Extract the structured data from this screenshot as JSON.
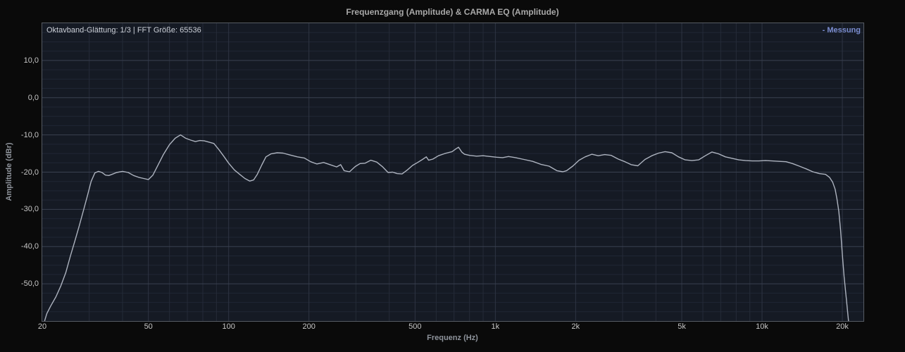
{
  "header": {
    "title": "Frequenzgang (Amplitude) & CARMA EQ (Amplitude)"
  },
  "plot": {
    "info_label": "Oktavband-Glättung: 1/3 | FFT Größe: 65536",
    "legend": [
      {
        "label": "- Messung",
        "color": "#7b8dd0"
      }
    ]
  },
  "axes": {
    "xlabel": "Frequenz (Hz)",
    "ylabel": "Amplitude (dBr)"
  },
  "colors": {
    "page_bg": "#0a0a0a",
    "plot_bg": "#151a24",
    "border": "#565b63",
    "grid_minor_h": "#202634",
    "grid_major_h": "#3a4150",
    "grid_vertical": "#252b38",
    "grid_vertical_labeled": "#2e3443",
    "curve": "#adb3bf",
    "title_text": "#a8a8a8",
    "info_text": "#ccd0d8",
    "tick_text": "#c6c6c6",
    "axis_label_text": "#8f949c",
    "legend_text": "#7b8dd0"
  },
  "chart_data": {
    "type": "line",
    "title": "Frequenzgang (Amplitude) & CARMA EQ (Amplitude)",
    "xlabel": "Frequenz (Hz)",
    "ylabel": "Amplitude (dBr)",
    "x_scale": "log",
    "x_range": [
      20,
      24000
    ],
    "y_range": [
      -60,
      20
    ],
    "y_major_step": 10,
    "y_minor_step": 2.5,
    "grid": true,
    "legend_position": "top-right",
    "x_ticks": [
      {
        "f": 20,
        "label": "20"
      },
      {
        "f": 50,
        "label": "50"
      },
      {
        "f": 100,
        "label": "100"
      },
      {
        "f": 200,
        "label": "200"
      },
      {
        "f": 500,
        "label": "500"
      },
      {
        "f": 1000,
        "label": "1k"
      },
      {
        "f": 2000,
        "label": "2k"
      },
      {
        "f": 5000,
        "label": "5k"
      },
      {
        "f": 10000,
        "label": "10k"
      },
      {
        "f": 20000,
        "label": "20k"
      }
    ],
    "y_ticks": [
      {
        "v": 10,
        "label": "10,0"
      },
      {
        "v": 0,
        "label": "0,0"
      },
      {
        "v": -10,
        "label": "-10,0"
      },
      {
        "v": -20,
        "label": "-20,0"
      },
      {
        "v": -30,
        "label": "-30,0"
      },
      {
        "v": -40,
        "label": "-40,0"
      },
      {
        "v": -50,
        "label": "-50,0"
      }
    ],
    "series": [
      {
        "name": "Messung",
        "color": "#adb3bf",
        "points": [
          [
            20.4,
            -60
          ],
          [
            20.8,
            -58
          ],
          [
            21.5,
            -56
          ],
          [
            22.5,
            -53.5
          ],
          [
            23.5,
            -50.5
          ],
          [
            24.5,
            -47
          ],
          [
            25.5,
            -42.5
          ],
          [
            26.5,
            -38.5
          ],
          [
            27.5,
            -34.5
          ],
          [
            28.5,
            -30.5
          ],
          [
            29.5,
            -26.5
          ],
          [
            30.5,
            -22.5
          ],
          [
            31.5,
            -20.2
          ],
          [
            32.5,
            -19.8
          ],
          [
            33.5,
            -20.1
          ],
          [
            34.5,
            -20.8
          ],
          [
            35.5,
            -20.9
          ],
          [
            36.5,
            -20.6
          ],
          [
            38,
            -20.1
          ],
          [
            40,
            -19.8
          ],
          [
            42,
            -20.1
          ],
          [
            44,
            -20.9
          ],
          [
            46,
            -21.4
          ],
          [
            48,
            -21.7
          ],
          [
            50,
            -22
          ],
          [
            52,
            -20.8
          ],
          [
            54,
            -18.5
          ],
          [
            57,
            -15.2
          ],
          [
            60,
            -12.6
          ],
          [
            63,
            -10.9
          ],
          [
            66,
            -10
          ],
          [
            69,
            -10.9
          ],
          [
            72,
            -11.4
          ],
          [
            75,
            -11.8
          ],
          [
            78,
            -11.5
          ],
          [
            81,
            -11.6
          ],
          [
            84,
            -11.9
          ],
          [
            88,
            -12.3
          ],
          [
            92,
            -14
          ],
          [
            96,
            -15.8
          ],
          [
            100,
            -17.6
          ],
          [
            105,
            -19.4
          ],
          [
            110,
            -20.6
          ],
          [
            115,
            -21.7
          ],
          [
            120,
            -22.4
          ],
          [
            124,
            -22.1
          ],
          [
            128,
            -20.6
          ],
          [
            133,
            -18.1
          ],
          [
            138,
            -15.9
          ],
          [
            144,
            -15.1
          ],
          [
            152,
            -14.8
          ],
          [
            160,
            -14.9
          ],
          [
            170,
            -15.4
          ],
          [
            181,
            -15.9
          ],
          [
            192,
            -16.2
          ],
          [
            203,
            -17.2
          ],
          [
            214,
            -17.8
          ],
          [
            227,
            -17.4
          ],
          [
            240,
            -18
          ],
          [
            254,
            -18.6
          ],
          [
            263,
            -18
          ],
          [
            271,
            -19.6
          ],
          [
            284,
            -19.9
          ],
          [
            298,
            -18.5
          ],
          [
            311,
            -17.7
          ],
          [
            325,
            -17.6
          ],
          [
            341,
            -16.8
          ],
          [
            359,
            -17.3
          ],
          [
            378,
            -18.6
          ],
          [
            396,
            -20.1
          ],
          [
            412,
            -20
          ],
          [
            428,
            -20.4
          ],
          [
            447,
            -20.5
          ],
          [
            468,
            -19.4
          ],
          [
            489,
            -18.2
          ],
          [
            511,
            -17.4
          ],
          [
            533,
            -16.6
          ],
          [
            551,
            -15.9
          ],
          [
            562,
            -16.8
          ],
          [
            583,
            -16.5
          ],
          [
            612,
            -15.6
          ],
          [
            646,
            -15
          ],
          [
            688,
            -14.5
          ],
          [
            713,
            -13.7
          ],
          [
            728,
            -13.3
          ],
          [
            748,
            -14.6
          ],
          [
            766,
            -15.2
          ],
          [
            800,
            -15.5
          ],
          [
            850,
            -15.7
          ],
          [
            900,
            -15.6
          ],
          [
            955,
            -15.8
          ],
          [
            1010,
            -16
          ],
          [
            1065,
            -16.1
          ],
          [
            1120,
            -15.8
          ],
          [
            1190,
            -16.1
          ],
          [
            1280,
            -16.6
          ],
          [
            1380,
            -17.1
          ],
          [
            1480,
            -17.9
          ],
          [
            1590,
            -18.4
          ],
          [
            1700,
            -19.6
          ],
          [
            1790,
            -19.9
          ],
          [
            1850,
            -19.6
          ],
          [
            1950,
            -18.4
          ],
          [
            2060,
            -16.8
          ],
          [
            2170,
            -15.9
          ],
          [
            2300,
            -15.2
          ],
          [
            2430,
            -15.6
          ],
          [
            2570,
            -15.3
          ],
          [
            2720,
            -15.5
          ],
          [
            2890,
            -16.5
          ],
          [
            3060,
            -17.2
          ],
          [
            3230,
            -18
          ],
          [
            3420,
            -18.3
          ],
          [
            3640,
            -16.6
          ],
          [
            3860,
            -15.6
          ],
          [
            4090,
            -14.9
          ],
          [
            4330,
            -14.5
          ],
          [
            4590,
            -14.8
          ],
          [
            4860,
            -15.9
          ],
          [
            5150,
            -16.7
          ],
          [
            5460,
            -16.9
          ],
          [
            5780,
            -16.7
          ],
          [
            6130,
            -15.6
          ],
          [
            6490,
            -14.6
          ],
          [
            6880,
            -15.1
          ],
          [
            7290,
            -15.9
          ],
          [
            7720,
            -16.3
          ],
          [
            8180,
            -16.7
          ],
          [
            8670,
            -16.9
          ],
          [
            9190,
            -17
          ],
          [
            9730,
            -17
          ],
          [
            10300,
            -16.9
          ],
          [
            10900,
            -17
          ],
          [
            11600,
            -17.1
          ],
          [
            12300,
            -17.2
          ],
          [
            13000,
            -17.7
          ],
          [
            13800,
            -18.4
          ],
          [
            14600,
            -19.1
          ],
          [
            15500,
            -19.9
          ],
          [
            16400,
            -20.4
          ],
          [
            17300,
            -20.6
          ],
          [
            17900,
            -21.4
          ],
          [
            18400,
            -22.7
          ],
          [
            18800,
            -24.6
          ],
          [
            19100,
            -27.2
          ],
          [
            19400,
            -30.5
          ],
          [
            19700,
            -35.5
          ],
          [
            20000,
            -42
          ],
          [
            20300,
            -48
          ],
          [
            20700,
            -54
          ],
          [
            21100,
            -60
          ]
        ]
      }
    ]
  }
}
